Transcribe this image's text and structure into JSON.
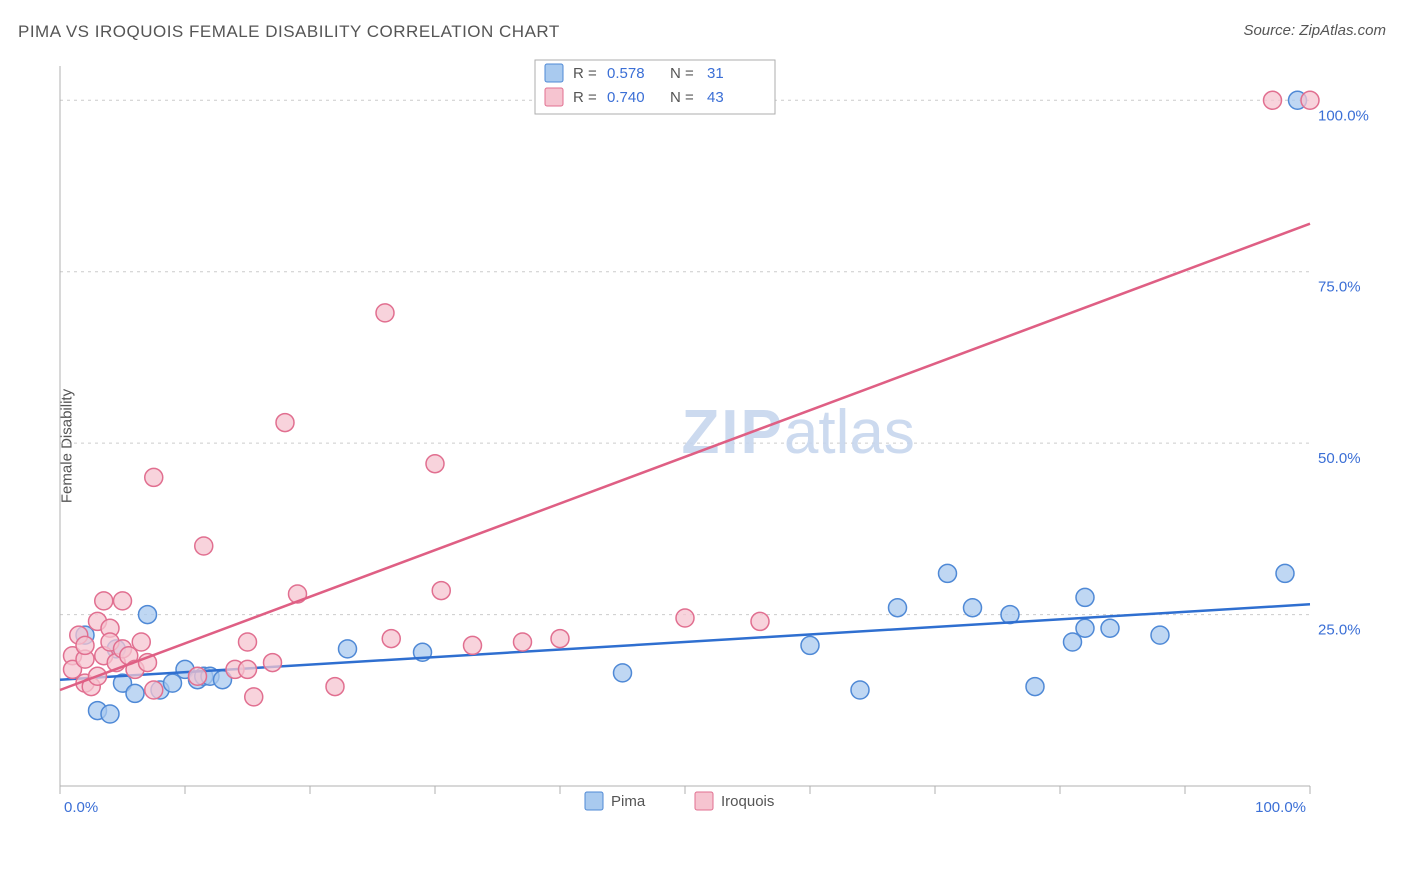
{
  "title": "PIMA VS IROQUOIS FEMALE DISABILITY CORRELATION CHART",
  "source": "Source: ZipAtlas.com",
  "ylabel": "Female Disability",
  "watermark_zip": "ZIP",
  "watermark_atlas": "atlas",
  "chart": {
    "type": "scatter",
    "xlim": [
      0,
      100
    ],
    "ylim": [
      0,
      105
    ],
    "xtick_positions": [
      0,
      10,
      20,
      30,
      40,
      50,
      60,
      70,
      80,
      90,
      100
    ],
    "ytick_positions": [
      25,
      50,
      75,
      100
    ],
    "ytick_labels": [
      "25.0%",
      "50.0%",
      "75.0%",
      "100.0%"
    ],
    "x_first_label": "0.0%",
    "x_last_label": "100.0%",
    "grid_color": "#d8d8d8",
    "axis_color": "#b0b0b0",
    "background_color": "#ffffff",
    "marker_radius": 9,
    "marker_stroke_width": 1.5,
    "line_width": 2.5,
    "series": [
      {
        "name": "Pima",
        "fill": "#a9caef",
        "stroke": "#4f89d6",
        "line_color": "#2f6fd0",
        "R": "0.578",
        "N": "31",
        "trend": {
          "x1": 0,
          "y1": 15.5,
          "x2": 100,
          "y2": 26.5
        },
        "points": [
          [
            2,
            22
          ],
          [
            3,
            11
          ],
          [
            4,
            10.5
          ],
          [
            4.5,
            20
          ],
          [
            5,
            15
          ],
          [
            6,
            13.5
          ],
          [
            7,
            25
          ],
          [
            8,
            14
          ],
          [
            9,
            15
          ],
          [
            10,
            17
          ],
          [
            11,
            15.5
          ],
          [
            11.5,
            16
          ],
          [
            12,
            16
          ],
          [
            13,
            15.5
          ],
          [
            23,
            20
          ],
          [
            29,
            19.5
          ],
          [
            45,
            16.5
          ],
          [
            60,
            20.5
          ],
          [
            64,
            14
          ],
          [
            67,
            26
          ],
          [
            71,
            31
          ],
          [
            73,
            26
          ],
          [
            76,
            25
          ],
          [
            78,
            14.5
          ],
          [
            81,
            21
          ],
          [
            82,
            27.5
          ],
          [
            82,
            23
          ],
          [
            84,
            23
          ],
          [
            88,
            22
          ],
          [
            98,
            31
          ],
          [
            99,
            100
          ]
        ]
      },
      {
        "name": "Iroquois",
        "fill": "#f6c4d0",
        "stroke": "#e16f90",
        "line_color": "#df5f84",
        "R": "0.740",
        "N": "43",
        "trend": {
          "x1": 0,
          "y1": 14,
          "x2": 100,
          "y2": 82
        },
        "points": [
          [
            1,
            19
          ],
          [
            1,
            17
          ],
          [
            1.5,
            22
          ],
          [
            2,
            15
          ],
          [
            2,
            18.5
          ],
          [
            2,
            20.5
          ],
          [
            2.5,
            14.5
          ],
          [
            3,
            16
          ],
          [
            3,
            24
          ],
          [
            3.5,
            27
          ],
          [
            3.5,
            19
          ],
          [
            4,
            23
          ],
          [
            4,
            21
          ],
          [
            4.5,
            18
          ],
          [
            5,
            27
          ],
          [
            5,
            20
          ],
          [
            5.5,
            19
          ],
          [
            6,
            17
          ],
          [
            6.5,
            21
          ],
          [
            7,
            18
          ],
          [
            7.5,
            14
          ],
          [
            7.5,
            45
          ],
          [
            11,
            16
          ],
          [
            11.5,
            35
          ],
          [
            14,
            17
          ],
          [
            15,
            17
          ],
          [
            15,
            21
          ],
          [
            15.5,
            13
          ],
          [
            17,
            18
          ],
          [
            18,
            53
          ],
          [
            19,
            28
          ],
          [
            22,
            14.5
          ],
          [
            26,
            69
          ],
          [
            26.5,
            21.5
          ],
          [
            30,
            47
          ],
          [
            30.5,
            28.5
          ],
          [
            33,
            20.5
          ],
          [
            37,
            21
          ],
          [
            40,
            21.5
          ],
          [
            50,
            24.5
          ],
          [
            56,
            24
          ],
          [
            97,
            100
          ],
          [
            100,
            100
          ]
        ]
      }
    ]
  },
  "bottom_legend": [
    {
      "label": "Pima",
      "fill": "#a9caef",
      "stroke": "#4f89d6"
    },
    {
      "label": "Iroquois",
      "fill": "#f6c4d0",
      "stroke": "#e16f90"
    }
  ],
  "top_legend": {
    "r_label": "R =",
    "n_label": "N ="
  }
}
